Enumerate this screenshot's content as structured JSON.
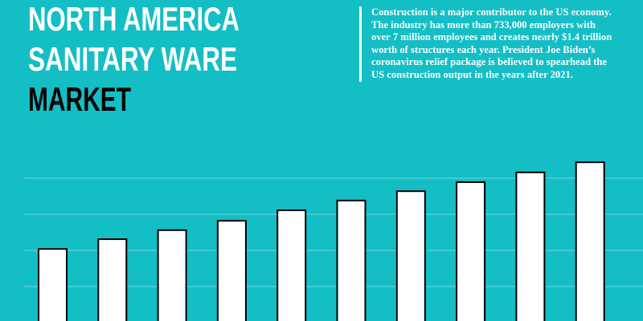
{
  "chart_data": {
    "type": "bar",
    "title_lines": [
      "NORTH AMERICA",
      "SANITARY WARE",
      "MARKET"
    ],
    "description": "Construction is a major contributor to the US economy. The industry has more than 733,000 employers with over 7 million employees and creates nearly $1.4 trillion worth of structures each year. President Joe Biden’s coronavirus relief package is believed to spearhead the US construction output in the years after 2021.",
    "values": [
      2.04,
      2.31,
      2.56,
      2.82,
      3.11,
      3.38,
      3.64,
      3.89,
      4.16,
      4.44
    ],
    "color": "#ffffff",
    "ylim": [
      0,
      5
    ],
    "yticks": [
      1,
      2,
      3,
      4
    ],
    "grid": true
  }
}
